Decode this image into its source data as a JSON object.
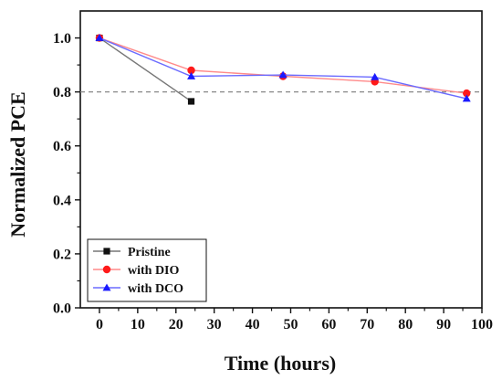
{
  "chart_data": {
    "type": "line",
    "title": "",
    "xlabel": "Time (hours)",
    "ylabel": "Normalized PCE",
    "xlim": [
      -5,
      100
    ],
    "ylim": [
      0.0,
      1.1
    ],
    "xticks": [
      0,
      10,
      20,
      30,
      40,
      50,
      60,
      70,
      80,
      90,
      100
    ],
    "xtick_labels": [
      "0",
      "10",
      "20",
      "30",
      "40",
      "50",
      "60",
      "70",
      "80",
      "90",
      "100"
    ],
    "yticks": [
      0.0,
      0.2,
      0.4,
      0.6,
      0.8,
      1.0
    ],
    "ytick_labels": [
      "0.0",
      "0.2",
      "0.4",
      "0.6",
      "0.8",
      "1.0"
    ],
    "reference_line": {
      "y": 0.8,
      "style": "dashed",
      "color": "#888888"
    },
    "grid": false,
    "legend_position": "bottom-left",
    "series": [
      {
        "name": "Pristine",
        "marker": "square",
        "color": "#111111",
        "line_color": "#777777",
        "x": [
          0,
          24
        ],
        "y": [
          1.0,
          0.765
        ]
      },
      {
        "name": "with DIO",
        "marker": "circle",
        "color": "#ff1a1a",
        "line_color": "#ff8a8a",
        "x": [
          0,
          24,
          48,
          72,
          96
        ],
        "y": [
          1.0,
          0.88,
          0.858,
          0.838,
          0.795
        ]
      },
      {
        "name": "with DCO",
        "marker": "triangle",
        "color": "#1a1aff",
        "line_color": "#6b6bff",
        "x": [
          0,
          24,
          48,
          72,
          96
        ],
        "y": [
          1.0,
          0.858,
          0.863,
          0.855,
          0.775
        ]
      }
    ]
  }
}
